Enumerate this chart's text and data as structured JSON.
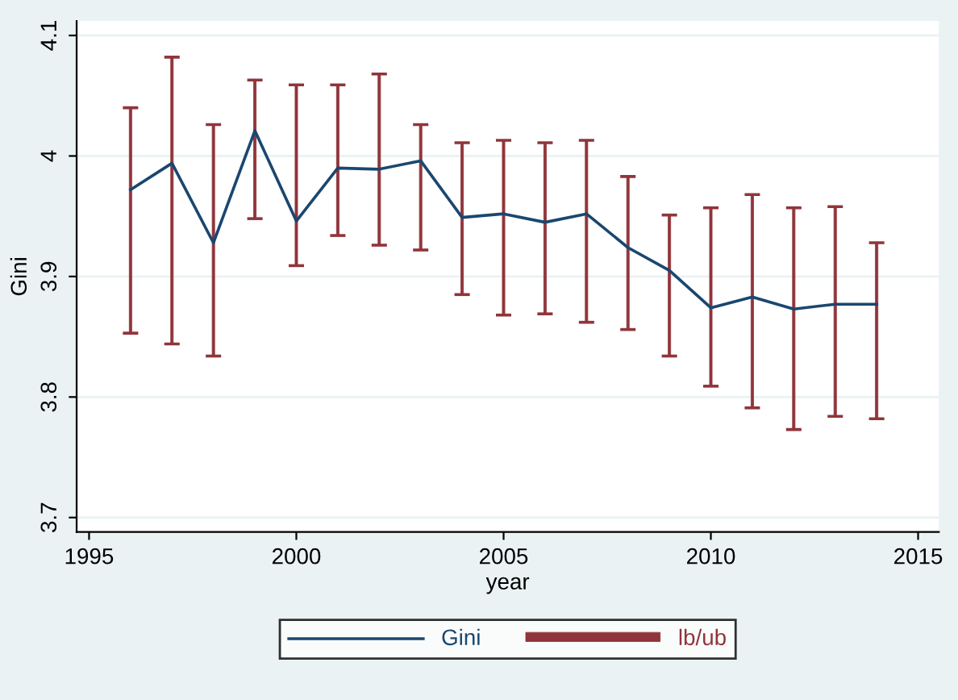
{
  "chart_data": {
    "type": "line",
    "xlabel": "year",
    "ylabel": "Gini",
    "x": [
      1996,
      1997,
      1998,
      1999,
      2000,
      2001,
      2002,
      2003,
      2004,
      2005,
      2006,
      2007,
      2008,
      2009,
      2010,
      2011,
      2012,
      2013,
      2014
    ],
    "series": [
      {
        "name": "Gini",
        "color": "#1a476f",
        "values": [
          3.972,
          3.994,
          3.928,
          4.021,
          3.946,
          3.99,
          3.989,
          3.996,
          3.949,
          3.952,
          3.945,
          3.952,
          3.924,
          3.905,
          3.874,
          3.883,
          3.873,
          3.877,
          3.877
        ]
      },
      {
        "name": "lb/ub",
        "type": "bar",
        "color": "#90353b",
        "base": [
          3.853,
          3.844,
          3.834,
          3.948,
          3.909,
          3.934,
          3.926,
          3.922,
          3.885,
          3.868,
          3.869,
          3.862,
          3.856,
          3.834,
          3.809,
          3.791,
          3.773,
          3.784,
          3.782
        ],
        "values": [
          0.187,
          0.238,
          0.192,
          0.115,
          0.15,
          0.125,
          0.142,
          0.104,
          0.126,
          0.145,
          0.142,
          0.151,
          0.127,
          0.117,
          0.148,
          0.177,
          0.184,
          0.174,
          0.146
        ]
      }
    ],
    "xlim": [
      1994.7,
      2015.5
    ],
    "xticks": [
      1995,
      2000,
      2005,
      2010,
      2015
    ],
    "ylim": [
      3.688,
      4.112
    ],
    "yticks": [
      3.7,
      3.8,
      3.9,
      4,
      4.1
    ],
    "grid": "y",
    "legend": "bottom"
  }
}
